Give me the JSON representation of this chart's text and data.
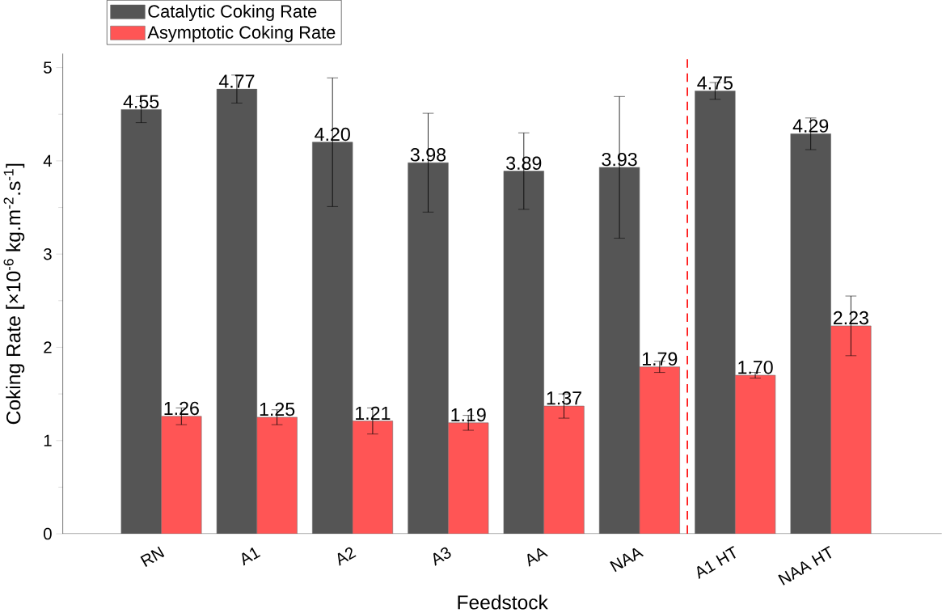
{
  "chart_data": {
    "type": "bar",
    "xlabel": "Feedstock",
    "ylabel": "Coking Rate [×10$^{-6}$ kg.m$^{-2}$.s$^{-1}$]",
    "categories": [
      "RN",
      "A1",
      "A2",
      "A3",
      "AA",
      "NAA",
      "A1 HT",
      "NAA HT"
    ],
    "series": [
      {
        "name": "Catalytic Coking Rate",
        "color": "#555555",
        "values": [
          4.55,
          4.77,
          4.2,
          3.98,
          3.89,
          3.93,
          4.75,
          4.29
        ],
        "errors": [
          0.14,
          0.15,
          0.69,
          0.53,
          0.41,
          0.76,
          0.09,
          0.17
        ],
        "value_labels": [
          "4.55",
          "4.77",
          "4.20",
          "3.98",
          "3.89",
          "3.93",
          "4.75",
          "4.29"
        ]
      },
      {
        "name": "Asymptotic Coking Rate",
        "color": "#ff5555",
        "values": [
          1.26,
          1.25,
          1.21,
          1.19,
          1.37,
          1.79,
          1.7,
          2.23
        ],
        "errors": [
          0.09,
          0.08,
          0.14,
          0.08,
          0.13,
          0.06,
          0.03,
          0.32
        ],
        "value_labels": [
          "1.26",
          "1.25",
          "1.21",
          "1.19",
          "1.37",
          "1.79",
          "1.70",
          "2.23"
        ]
      }
    ],
    "ylim": [
      0,
      5.15
    ],
    "yticks": [
      0,
      1,
      2,
      3,
      4,
      5
    ],
    "legend": "top left"
  }
}
